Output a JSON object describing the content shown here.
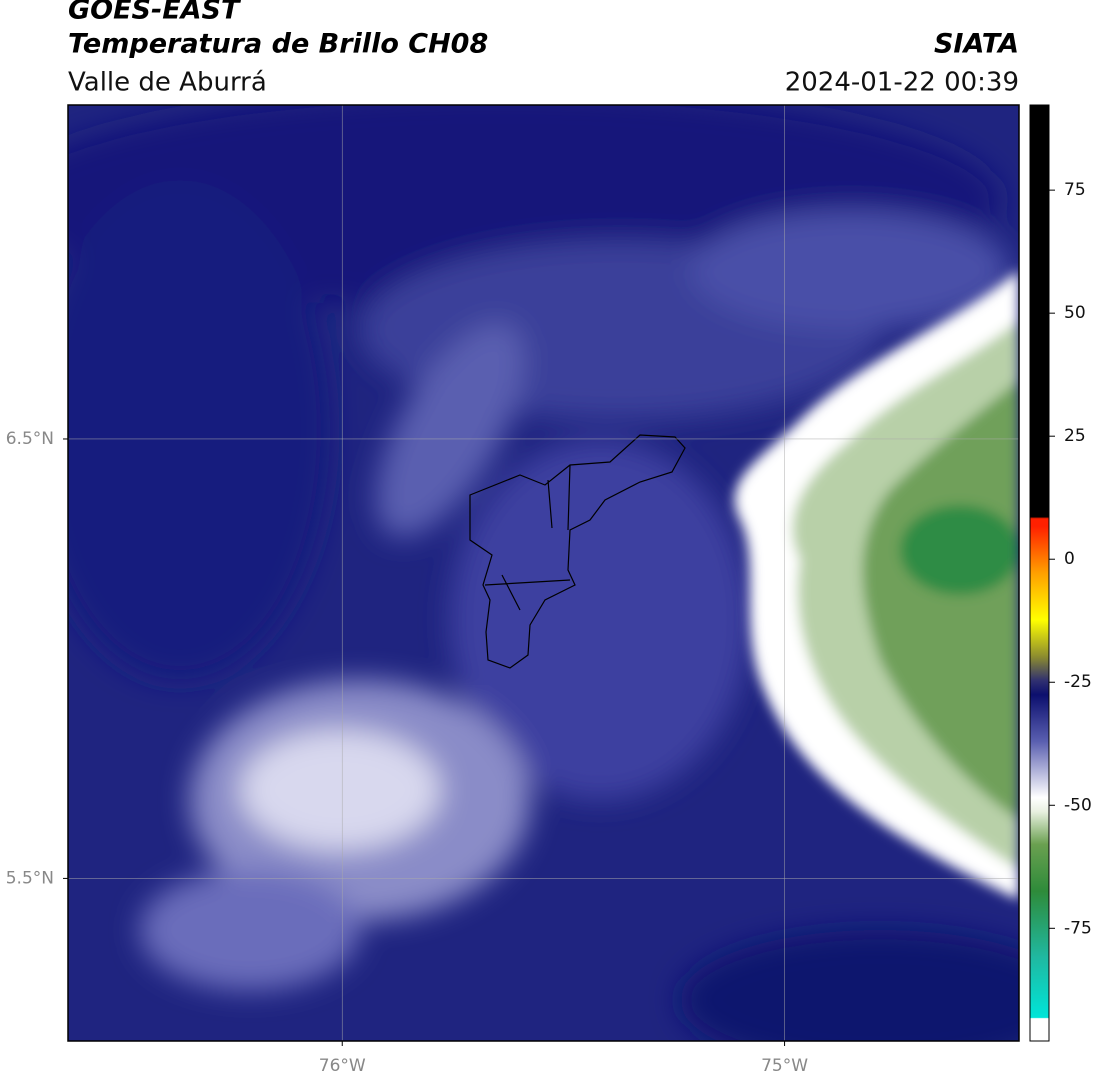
{
  "chart_data": {
    "type": "map",
    "title": "GOES-EAST",
    "subtitle": "Temperatura de Brillo CH08",
    "region": "Valle de Aburrá",
    "source": "SIATA",
    "timestamp": "2024-01-22 00:39",
    "xlim": [
      -76.62,
      -74.47
    ],
    "ylim": [
      5.13,
      7.26
    ],
    "xticks": [
      {
        "value": -76,
        "label": "76°W"
      },
      {
        "value": -75,
        "label": "75°W"
      }
    ],
    "yticks": [
      {
        "value": 5.5,
        "label": "5.5°N"
      },
      {
        "value": 6.5,
        "label": "6.5°N"
      }
    ],
    "grid": true,
    "colorbar": {
      "lim": [
        -97.9,
        92.3
      ],
      "ticks": [
        -75,
        -50,
        -25,
        0,
        25,
        50,
        75
      ]
    }
  }
}
